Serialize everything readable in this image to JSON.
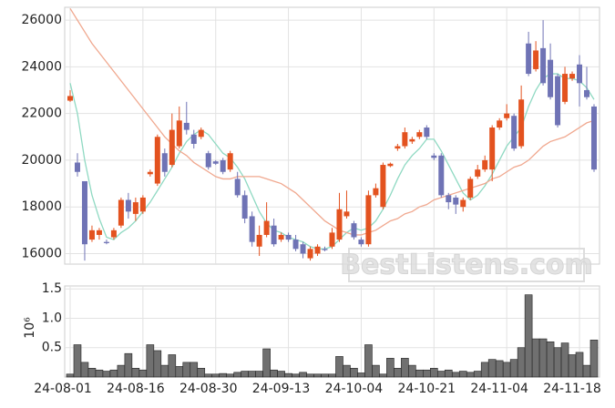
{
  "chart_data": {
    "type": "candlestick",
    "watermark": "BestListens.com",
    "categories": [
      "24-08-01",
      null,
      null,
      null,
      null,
      null,
      null,
      null,
      null,
      null,
      "24-08-16",
      null,
      null,
      null,
      null,
      null,
      null,
      null,
      null,
      null,
      "24-08-30",
      null,
      null,
      null,
      null,
      null,
      null,
      null,
      null,
      null,
      "24-09-13",
      null,
      null,
      null,
      null,
      null,
      null,
      null,
      null,
      null,
      "24-10-04",
      null,
      null,
      null,
      null,
      null,
      null,
      null,
      null,
      null,
      "24-10-21",
      null,
      null,
      null,
      null,
      null,
      null,
      null,
      null,
      null,
      "24-11-04",
      null,
      null,
      null,
      null,
      null,
      null,
      null,
      null,
      null,
      "24-11-18",
      null,
      null
    ],
    "open": [
      22550,
      19900,
      19100,
      16600,
      16800,
      16500,
      16700,
      17200,
      18300,
      17700,
      17800,
      19400,
      19000,
      20300,
      19800,
      20600,
      21600,
      21100,
      21000,
      20300,
      19950,
      20000,
      19600,
      19200,
      18500,
      17600,
      16300,
      16800,
      17200,
      16600,
      16800,
      16600,
      16400,
      15800,
      16000,
      16200,
      16300,
      16600,
      17600,
      17300,
      16600,
      16400,
      18500,
      18000,
      19750,
      20500,
      20600,
      20800,
      21000,
      21400,
      20200,
      20200,
      18500,
      18400,
      18000,
      18400,
      19300,
      19600,
      19600,
      21400,
      21800,
      21900,
      20600,
      25000,
      23900,
      24800,
      24300,
      23600,
      22500,
      23500,
      24100,
      23000,
      22300
    ],
    "high": [
      23000,
      20300,
      19100,
      17200,
      17100,
      16600,
      17100,
      18400,
      18600,
      18400,
      18500,
      19600,
      21100,
      20500,
      22000,
      22300,
      22500,
      21300,
      21400,
      20400,
      20000,
      20100,
      20400,
      19500,
      18700,
      17800,
      17200,
      18200,
      17500,
      16900,
      16900,
      16800,
      16500,
      16300,
      16400,
      16300,
      17100,
      18600,
      18700,
      17400,
      16700,
      18700,
      19000,
      19900,
      19900,
      20700,
      21400,
      21000,
      21300,
      21500,
      20300,
      20300,
      18600,
      18500,
      18400,
      19300,
      19800,
      20200,
      21500,
      21800,
      22400,
      22000,
      23200,
      25500,
      25100,
      26000,
      25000,
      23700,
      24000,
      23800,
      24500,
      24000,
      22400
    ],
    "low": [
      22500,
      19300,
      15700,
      16500,
      16600,
      16400,
      16600,
      17100,
      17500,
      17400,
      17700,
      19300,
      18900,
      19300,
      19700,
      20500,
      21100,
      20500,
      20900,
      19600,
      19800,
      19400,
      19500,
      18400,
      17300,
      16300,
      15900,
      16700,
      16300,
      16500,
      16500,
      16100,
      15800,
      15700,
      15900,
      16100,
      16200,
      16500,
      17500,
      16600,
      16300,
      16300,
      18400,
      17900,
      19700,
      20400,
      20500,
      20700,
      20900,
      20900,
      20000,
      18400,
      17900,
      17700,
      17800,
      18300,
      19200,
      19500,
      19100,
      21300,
      21700,
      20400,
      20500,
      23600,
      23800,
      23200,
      22600,
      21400,
      22400,
      23400,
      22300,
      22600,
      19500
    ],
    "close": [
      22750,
      19500,
      16400,
      17000,
      17000,
      16450,
      17000,
      18300,
      17800,
      18200,
      18400,
      19500,
      21000,
      19500,
      21300,
      21700,
      21300,
      20700,
      21300,
      19700,
      19850,
      19500,
      20300,
      18500,
      17500,
      16500,
      16800,
      17400,
      16400,
      16800,
      16600,
      16200,
      16000,
      16200,
      16300,
      16150,
      16900,
      17900,
      17800,
      16700,
      16400,
      18500,
      18800,
      19800,
      19850,
      20600,
      21200,
      20900,
      21200,
      21000,
      20100,
      18500,
      18200,
      18100,
      18300,
      19200,
      19600,
      20000,
      21400,
      21700,
      22000,
      20500,
      22600,
      23700,
      24700,
      23300,
      22700,
      21500,
      23700,
      23700,
      23300,
      22700,
      19600
    ],
    "up_color": "#e3521f",
    "down_color": "#6f73b5",
    "ma_lines": [
      {
        "color": "#8fd9c2",
        "values": [
          23300,
          22000,
          20000,
          18500,
          17500,
          16700,
          16600,
          16900,
          17100,
          17400,
          17800,
          18200,
          18700,
          19200,
          19700,
          20300,
          20800,
          21100,
          21300,
          21100,
          20700,
          20300,
          20100,
          19700,
          19200,
          18500,
          17800,
          17300,
          17000,
          16900,
          16700,
          16600,
          16500,
          16300,
          16200,
          16200,
          16300,
          16600,
          16900,
          17100,
          17000,
          17100,
          17400,
          17900,
          18500,
          19200,
          19800,
          20200,
          20500,
          20900,
          20900,
          20400,
          19800,
          19200,
          18600,
          18300,
          18500,
          18900,
          19400,
          20000,
          20600,
          21000,
          21400,
          22300,
          23000,
          23500,
          23700,
          23700,
          23500,
          23500,
          23400,
          23100,
          22600
        ]
      },
      {
        "color": "#f0a88f",
        "values": [
          26500,
          26000,
          25500,
          25000,
          24600,
          24200,
          23800,
          23400,
          23000,
          22600,
          22200,
          21800,
          21400,
          21000,
          20700,
          20400,
          20200,
          19900,
          19700,
          19500,
          19300,
          19200,
          19200,
          19300,
          19300,
          19300,
          19300,
          19200,
          19100,
          19000,
          18800,
          18600,
          18300,
          18000,
          17700,
          17400,
          17200,
          17000,
          16900,
          16800,
          16800,
          16900,
          17000,
          17200,
          17400,
          17500,
          17700,
          17800,
          18000,
          18100,
          18300,
          18400,
          18500,
          18600,
          18700,
          18800,
          18900,
          19000,
          19200,
          19300,
          19500,
          19700,
          19800,
          20000,
          20300,
          20600,
          20800,
          20900,
          21000,
          21200,
          21400,
          21600,
          21700
        ]
      }
    ],
    "ylim": [
      15550,
      26550
    ],
    "yticks": [
      16000,
      18000,
      20000,
      22000,
      24000,
      26000
    ],
    "volume": {
      "color": "#707070",
      "offset_label": "10⁶",
      "values": [
        0.05,
        0.55,
        0.25,
        0.15,
        0.12,
        0.1,
        0.12,
        0.2,
        0.4,
        0.15,
        0.12,
        0.55,
        0.45,
        0.2,
        0.38,
        0.18,
        0.25,
        0.25,
        0.15,
        0.05,
        0.05,
        0.06,
        0.05,
        0.08,
        0.1,
        0.1,
        0.1,
        0.48,
        0.12,
        0.1,
        0.06,
        0.05,
        0.08,
        0.05,
        0.05,
        0.05,
        0.05,
        0.35,
        0.2,
        0.15,
        0.07,
        0.55,
        0.2,
        0.05,
        0.32,
        0.15,
        0.32,
        0.2,
        0.12,
        0.12,
        0.15,
        0.1,
        0.12,
        0.08,
        0.1,
        0.08,
        0.1,
        0.25,
        0.3,
        0.28,
        0.25,
        0.3,
        0.5,
        1.4,
        0.65,
        0.65,
        0.6,
        0.5,
        0.58,
        0.38,
        0.42,
        0.2,
        0.63
      ],
      "ylim": [
        0,
        1.55
      ],
      "yticks": [
        0.5,
        {
          "value": 1.0,
          "label": "1.0"
        },
        1.5
      ]
    },
    "grid": true
  }
}
